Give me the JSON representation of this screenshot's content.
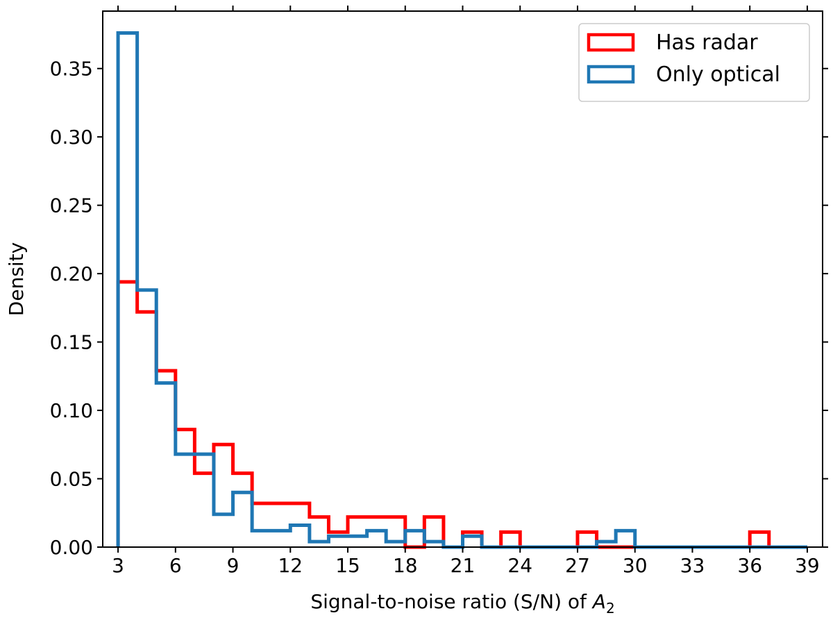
{
  "chart_data": {
    "type": "histogram",
    "title": "",
    "xlabel": "Signal-to-noise ratio (S/N) of ",
    "xlabel_math": "A",
    "xlabel_subscript": "2",
    "ylabel": "Density",
    "xlim": [
      2.2,
      39.8
    ],
    "ylim": [
      0,
      0.392
    ],
    "xticks": [
      3,
      6,
      9,
      12,
      15,
      18,
      21,
      24,
      27,
      30,
      33,
      36,
      39
    ],
    "xtick_labels": [
      "3",
      "6",
      "9",
      "12",
      "15",
      "18",
      "21",
      "24",
      "27",
      "30",
      "33",
      "36",
      "39"
    ],
    "yticks": [
      0,
      0.05,
      0.1,
      0.15,
      0.2,
      0.25,
      0.3,
      0.35
    ],
    "ytick_labels": [
      "0.00",
      "0.05",
      "0.10",
      "0.15",
      "0.20",
      "0.25",
      "0.30",
      "0.35"
    ],
    "bin_edges": [
      3,
      4,
      5,
      6,
      7,
      8,
      9,
      10,
      11,
      12,
      13,
      14,
      15,
      16,
      17,
      18,
      19,
      20,
      21,
      22,
      23,
      24,
      25,
      26,
      27,
      28,
      29,
      30,
      31,
      32,
      33,
      34,
      35,
      36,
      37,
      38,
      39
    ],
    "series": [
      {
        "name": "Has radar",
        "color": "#ff0000",
        "values": [
          0.194,
          0.172,
          0.129,
          0.086,
          0.054,
          0.075,
          0.054,
          0.032,
          0.032,
          0.032,
          0.022,
          0.011,
          0.022,
          0.022,
          0.022,
          0.0,
          0.022,
          0.0,
          0.011,
          0.0,
          0.011,
          0.0,
          0.0,
          0.0,
          0.011,
          0.0,
          0.0,
          0.0,
          0.0,
          0.0,
          0.0,
          0.0,
          0.0,
          0.011,
          0.0,
          0.0
        ]
      },
      {
        "name": "Only optical",
        "color": "#1f77b4",
        "values": [
          0.376,
          0.188,
          0.12,
          0.068,
          0.068,
          0.024,
          0.04,
          0.012,
          0.012,
          0.016,
          0.004,
          0.008,
          0.008,
          0.012,
          0.004,
          0.012,
          0.004,
          0.0,
          0.008,
          0.0,
          0.0,
          0.0,
          0.0,
          0.0,
          0.0,
          0.004,
          0.012,
          0.0,
          0.0,
          0.0,
          0.0,
          0.0,
          0.0,
          0.0,
          0.0,
          0.0
        ]
      }
    ],
    "legend": {
      "position": "upper-right",
      "entries": [
        {
          "label": "Has radar",
          "color": "#ff0000"
        },
        {
          "label": "Only optical",
          "color": "#1f77b4"
        }
      ]
    },
    "grid": false
  }
}
